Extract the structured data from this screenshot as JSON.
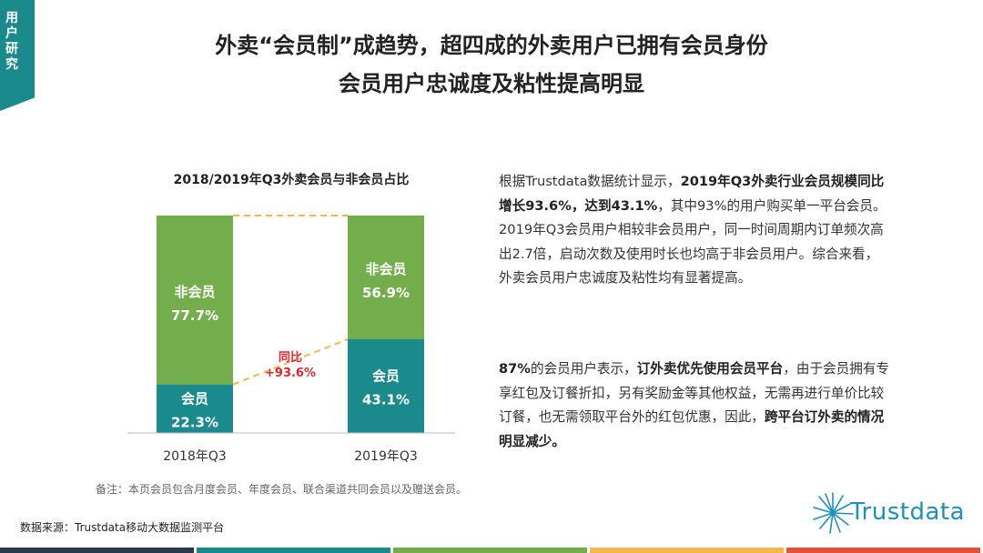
{
  "corner": {
    "label": "用户研究"
  },
  "title": {
    "line1": "外卖“会员制”成趋势，超四成的外卖用户已拥有会员身份",
    "line2": "会员用户忠诚度及粘性提高明显"
  },
  "colors": {
    "non_member": "#73ad4c",
    "member": "#1a8a8d",
    "connector": "#f2b84b",
    "yoy_label": "#d9282f",
    "accent": "#1a8a8d"
  },
  "chart_data": {
    "type": "bar",
    "stacked": true,
    "percent": true,
    "title": "2018/2019年Q3外卖会员与非会员占比",
    "categories": [
      "2018年Q3",
      "2019年Q3"
    ],
    "series": [
      {
        "name": "会员",
        "values": [
          22.3,
          43.1
        ],
        "value_labels": [
          "22.3%",
          "43.1%"
        ]
      },
      {
        "name": "非会员",
        "values": [
          77.7,
          56.9
        ],
        "value_labels": [
          "77.7%",
          "56.9%"
        ]
      }
    ],
    "ylim": [
      0,
      100
    ],
    "annotation": {
      "line1": "同比",
      "line2": "+93.6%"
    }
  },
  "paragraph1": {
    "s1": "根据Trustdata数据统计显示，",
    "b1": "2019年Q3外卖行业会员规模同比增长93.6%，达到43.1%",
    "s2": "，其中93%的用户购买单一平台会员。2019年Q3会员用户相较非会员用户，同一时间周期内订单频次高出2.7倍，启动次数及使用时长也均高于非会员用户。综合来看，外卖会员用户忠诚度及粘性均有显著提高。"
  },
  "paragraph2": {
    "b1": "87%",
    "s1": "的会员用户表示，",
    "b2": "订外卖优先使用会员平台",
    "s2": "，由于会员拥有专享红包及订餐折扣，另有奖励金等其他权益，无需再进行单价比较订餐，也无需领取平台外的红包优惠，因此，",
    "b3": "跨平台订外卖的情况明显减少。"
  },
  "note": "备注：本页会员包含月度会员、年度会员、联合渠道共同会员以及赠送会员。",
  "source": "数据来源：Trustdata移动大数据监测平台",
  "logo": {
    "text": "Trustdata",
    "icon": "starburst-logo-icon"
  },
  "footer_colors": [
    "#2b3a4a",
    "#1a8a8d",
    "#73ad4c",
    "#f2b84b",
    "#e0503a"
  ]
}
